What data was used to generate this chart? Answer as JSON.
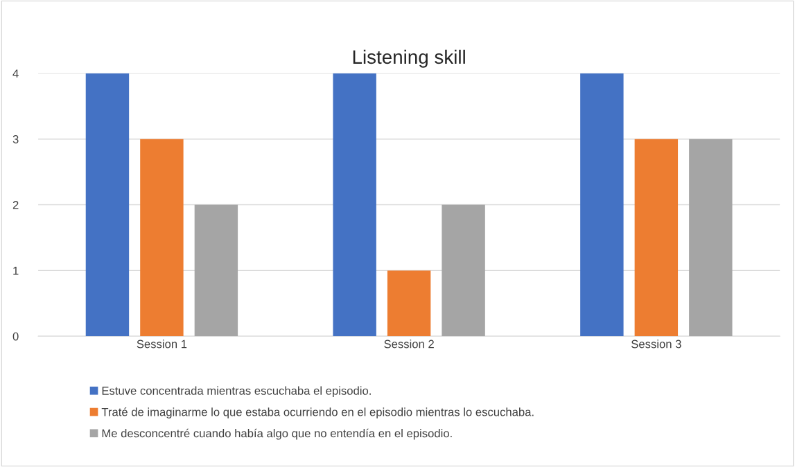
{
  "chart_data": {
    "type": "bar",
    "title": "Listening skill",
    "categories": [
      "Session 1",
      "Session 2",
      "Session 3"
    ],
    "series": [
      {
        "name": "Estuve concentrada mientras escuchaba el episodio.",
        "color": "#4472c4",
        "values": [
          4,
          4,
          4
        ]
      },
      {
        "name": "Traté de imaginarme lo que estaba ocurriendo en el episodio mientras lo escuchaba.",
        "color": "#ed7d31",
        "values": [
          3,
          1,
          3
        ]
      },
      {
        "name": "Me desconcentré cuando había algo que no entendía en el episodio.",
        "color": "#a5a5a5",
        "values": [
          2,
          2,
          3
        ]
      }
    ],
    "ylim": [
      0,
      4
    ],
    "yticks": [
      0,
      1,
      2,
      3,
      4
    ],
    "grid": "y",
    "legend": "bottom"
  }
}
